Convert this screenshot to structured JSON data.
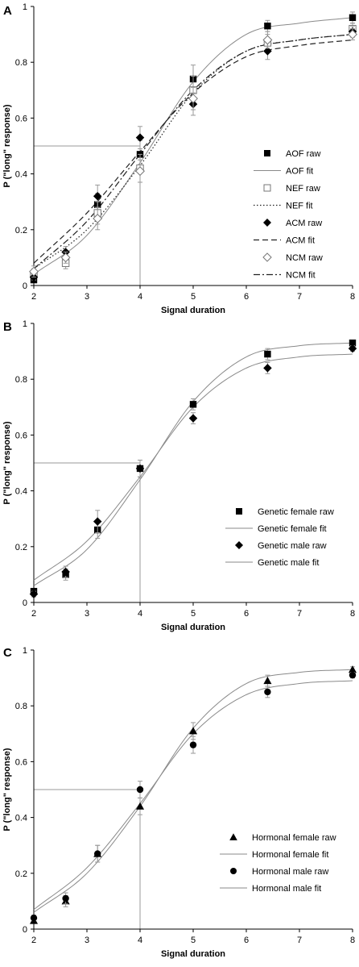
{
  "chart_data": [
    {
      "type": "scatter",
      "panel_label": "A",
      "xlabel": "Signal duration",
      "ylabel": "P (\"long\" response)",
      "xlim": [
        2,
        8
      ],
      "ylim": [
        0,
        1
      ],
      "x_ticks": [
        "2",
        "3",
        "4",
        "5",
        "6",
        "7",
        "8"
      ],
      "y_ticks": [
        "0",
        "0.2",
        "0.4",
        "0.6",
        "0.8",
        "1"
      ],
      "reference_lines": {
        "y": 0.5,
        "x": 4
      },
      "legend_position": "right",
      "series": [
        {
          "name": "AOF raw",
          "kind": "raw",
          "marker": "square-filled",
          "x": [
            2,
            2.6,
            3.2,
            4,
            5,
            6.4,
            8
          ],
          "y": [
            0.02,
            0.09,
            0.29,
            0.47,
            0.74,
            0.93,
            0.96
          ],
          "err": [
            0.01,
            0.02,
            0.04,
            0.05,
            0.05,
            0.02,
            0.02
          ]
        },
        {
          "name": "AOF fit",
          "kind": "fit",
          "line": "solid",
          "x": [
            2,
            3,
            4,
            5,
            6,
            7,
            8
          ],
          "y": [
            0.04,
            0.18,
            0.44,
            0.73,
            0.9,
            0.94,
            0.96
          ]
        },
        {
          "name": "NEF raw",
          "kind": "raw",
          "marker": "square-open",
          "x": [
            2,
            2.6,
            3.2,
            4,
            5,
            6.4,
            8
          ],
          "y": [
            0.04,
            0.08,
            0.26,
            0.42,
            0.7,
            0.87,
            0.92
          ],
          "err": [
            0.02,
            0.02,
            0.04,
            0.05,
            0.05,
            0.03,
            0.02
          ]
        },
        {
          "name": "NEF fit",
          "kind": "fit",
          "line": "dotted",
          "x": [
            2,
            3,
            4,
            5,
            6,
            7,
            8
          ],
          "y": [
            0.06,
            0.2,
            0.43,
            0.69,
            0.84,
            0.88,
            0.9
          ]
        },
        {
          "name": "ACM raw",
          "kind": "raw",
          "marker": "diamond-filled",
          "x": [
            2,
            2.6,
            3.2,
            4,
            5,
            6.4,
            8
          ],
          "y": [
            0.03,
            0.12,
            0.32,
            0.53,
            0.65,
            0.84,
            0.91
          ],
          "err": [
            0.01,
            0.02,
            0.04,
            0.04,
            0.04,
            0.03,
            0.02
          ]
        },
        {
          "name": "ACM fit",
          "kind": "fit",
          "line": "dashed",
          "x": [
            2,
            3,
            4,
            5,
            6,
            7,
            8
          ],
          "y": [
            0.08,
            0.26,
            0.48,
            0.69,
            0.82,
            0.86,
            0.88
          ]
        },
        {
          "name": "NCM raw",
          "kind": "raw",
          "marker": "diamond-open",
          "x": [
            2,
            2.6,
            3.2,
            4,
            5,
            6.4,
            8
          ],
          "y": [
            0.05,
            0.1,
            0.24,
            0.41,
            0.67,
            0.88,
            0.9
          ],
          "err": [
            0.02,
            0.02,
            0.04,
            0.04,
            0.04,
            0.03,
            0.02
          ]
        },
        {
          "name": "NCM fit",
          "kind": "fit",
          "line": "dashdot",
          "x": [
            2,
            3,
            4,
            5,
            6,
            7,
            8
          ],
          "y": [
            0.06,
            0.23,
            0.47,
            0.7,
            0.84,
            0.88,
            0.9
          ]
        }
      ]
    },
    {
      "type": "scatter",
      "panel_label": "B",
      "xlabel": "Signal duration",
      "ylabel": "P (\"long\" response)",
      "xlim": [
        2,
        8
      ],
      "ylim": [
        0,
        1
      ],
      "x_ticks": [
        "2",
        "3",
        "4",
        "5",
        "6",
        "7",
        "8"
      ],
      "y_ticks": [
        "0",
        "0.2",
        "0.4",
        "0.6",
        "0.8",
        "1"
      ],
      "reference_lines": {
        "y": 0.5,
        "x": 4
      },
      "legend_position": "bottom-right",
      "series": [
        {
          "name": "Genetic female raw",
          "kind": "raw",
          "marker": "square-filled",
          "x": [
            2,
            2.6,
            3.2,
            4,
            5,
            6.4,
            8
          ],
          "y": [
            0.04,
            0.1,
            0.26,
            0.48,
            0.71,
            0.89,
            0.93
          ],
          "err": [
            0.01,
            0.02,
            0.03,
            0.03,
            0.02,
            0.02,
            0.01
          ]
        },
        {
          "name": "Genetic female fit",
          "kind": "fit",
          "line": "solid",
          "x": [
            2,
            3,
            4,
            5,
            6,
            7,
            8
          ],
          "y": [
            0.06,
            0.19,
            0.44,
            0.72,
            0.88,
            0.92,
            0.93
          ]
        },
        {
          "name": "Genetic male raw",
          "kind": "raw",
          "marker": "diamond-filled",
          "x": [
            2,
            2.6,
            3.2,
            4,
            5,
            6.4,
            8
          ],
          "y": [
            0.03,
            0.11,
            0.29,
            0.48,
            0.66,
            0.84,
            0.91
          ],
          "err": [
            0.01,
            0.02,
            0.04,
            0.03,
            0.02,
            0.02,
            0.01
          ]
        },
        {
          "name": "Genetic male fit",
          "kind": "fit",
          "line": "solid",
          "x": [
            2,
            3,
            4,
            5,
            6,
            7,
            8
          ],
          "y": [
            0.08,
            0.22,
            0.45,
            0.7,
            0.84,
            0.88,
            0.89
          ]
        }
      ]
    },
    {
      "type": "scatter",
      "panel_label": "C",
      "xlabel": "Signal duration",
      "ylabel": "P (\"long\" response)",
      "xlim": [
        2,
        8
      ],
      "ylim": [
        0,
        1
      ],
      "x_ticks": [
        "2",
        "3",
        "4",
        "5",
        "6",
        "7",
        "8"
      ],
      "y_ticks": [
        "0",
        "0.2",
        "0.4",
        "0.6",
        "0.8",
        "1"
      ],
      "reference_lines": {
        "y": 0.5,
        "x": 4
      },
      "legend_position": "bottom-right",
      "series": [
        {
          "name": "Hormonal female raw",
          "kind": "raw",
          "marker": "triangle-filled",
          "x": [
            2,
            2.6,
            3.2,
            4,
            5,
            6.4,
            8
          ],
          "y": [
            0.03,
            0.1,
            0.27,
            0.44,
            0.71,
            0.89,
            0.93
          ],
          "err": [
            0.01,
            0.02,
            0.03,
            0.03,
            0.03,
            0.02,
            0.01
          ]
        },
        {
          "name": "Hormonal female fit",
          "kind": "fit",
          "line": "solid",
          "x": [
            2,
            3,
            4,
            5,
            6,
            7,
            8
          ],
          "y": [
            0.06,
            0.2,
            0.44,
            0.72,
            0.88,
            0.92,
            0.93
          ]
        },
        {
          "name": "Hormonal male raw",
          "kind": "raw",
          "marker": "circle-filled",
          "x": [
            2,
            2.6,
            3.2,
            4,
            5,
            6.4,
            8
          ],
          "y": [
            0.04,
            0.11,
            0.27,
            0.5,
            0.66,
            0.85,
            0.91
          ],
          "err": [
            0.01,
            0.02,
            0.03,
            0.03,
            0.03,
            0.02,
            0.01
          ]
        },
        {
          "name": "Hormonal male fit",
          "kind": "fit",
          "line": "solid",
          "x": [
            2,
            3,
            4,
            5,
            6,
            7,
            8
          ],
          "y": [
            0.07,
            0.22,
            0.45,
            0.7,
            0.84,
            0.88,
            0.89
          ]
        }
      ]
    }
  ],
  "colors": {
    "axis": "#000000",
    "raw_marker": "#000000",
    "fit_line": "#8a8a8a",
    "open_marker_stroke": "#777777",
    "reference_line": "#9a9a9a",
    "error_bar": "#999999"
  }
}
